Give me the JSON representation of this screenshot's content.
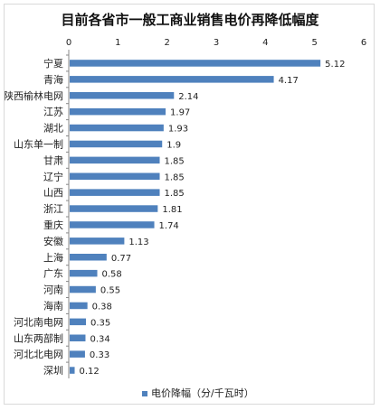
{
  "chart_data": {
    "type": "bar",
    "orientation": "horizontal",
    "title": "目前各省市一般工商业销售电价再降低幅度",
    "categories": [
      "宁夏",
      "青海",
      "陕西榆林电网",
      "江苏",
      "湖北",
      "山东单一制",
      "甘肃",
      "辽宁",
      "山西",
      "浙江",
      "重庆",
      "安徽",
      "上海",
      "广东",
      "河南",
      "海南",
      "河北南电网",
      "山东两部制",
      "河北北电网",
      "深圳"
    ],
    "series": [
      {
        "name": "电价降幅（分/千瓦时）",
        "values": [
          5.12,
          4.17,
          2.14,
          1.97,
          1.93,
          1.9,
          1.85,
          1.85,
          1.85,
          1.81,
          1.74,
          1.13,
          0.77,
          0.58,
          0.55,
          0.38,
          0.35,
          0.34,
          0.33,
          0.12
        ],
        "value_labels": [
          "5.12",
          "4.17",
          "2.14",
          "1.97",
          "1.93",
          "1.9",
          "1.85",
          "1.85",
          "1.85",
          "1.81",
          "1.74",
          "1.13",
          "0.77",
          "0.58",
          "0.55",
          "0.38",
          "0.35",
          "0.34",
          "0.33",
          "0.12"
        ]
      }
    ],
    "xlim": [
      0,
      6
    ],
    "xticks": [
      "0",
      "1",
      "2",
      "3",
      "4",
      "5",
      "6"
    ],
    "grid": false,
    "legend_position": "bottom-center",
    "bar_color": "#4f81bd"
  }
}
